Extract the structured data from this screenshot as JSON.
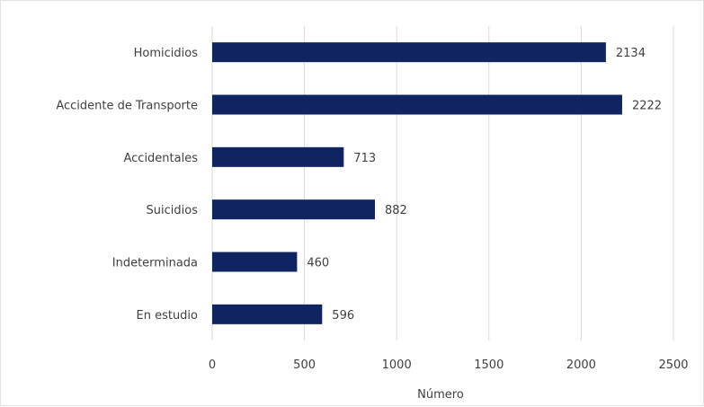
{
  "chart_data": {
    "type": "bar",
    "orientation": "horizontal",
    "title": "",
    "categories": [
      "Homicidios",
      "Accidente de Transporte",
      "Accidentales",
      "Suicidios",
      "Indeterminada",
      "En estudio"
    ],
    "values": [
      2134,
      2222,
      713,
      882,
      460,
      596
    ],
    "xlabel": "Número",
    "ylabel": "",
    "xlim": [
      0,
      2500
    ],
    "xticks": [
      0,
      500,
      1000,
      1500,
      2000,
      2500
    ],
    "grid": "vertical",
    "legend": "none",
    "bar_color": "#0f2461"
  }
}
